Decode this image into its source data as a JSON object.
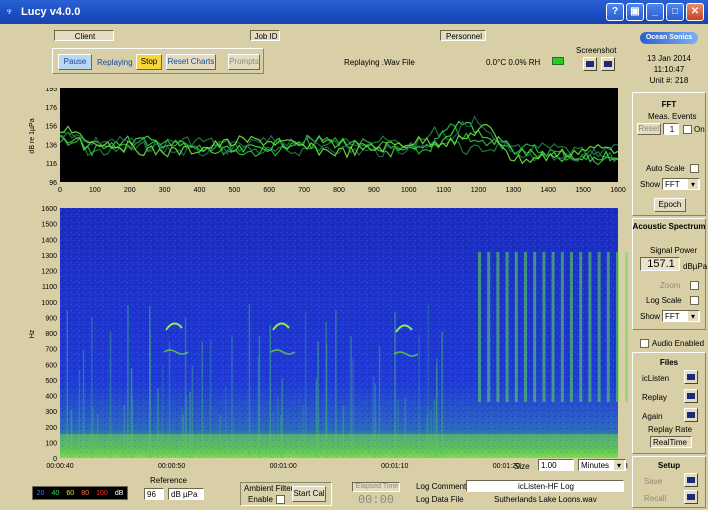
{
  "window": {
    "title": "Lucy v4.0.0"
  },
  "header": {
    "client_label": "Client",
    "jobid_label": "Job ID",
    "personnel_label": "Personnel",
    "screenshot_label": "Screenshot"
  },
  "controls": {
    "pause": "Pause",
    "replaying": "Replaying",
    "stop": "Stop",
    "reset_charts": "Reset Charts",
    "prompts": "Prompts",
    "status": "Replaying .Wav File",
    "temp_humidity": "0.0°C 0.0% RH"
  },
  "brand": {
    "logo_left": "Ocean",
    "logo_right": "Sonics",
    "date": "13 Jan 2014",
    "time": "11:10:47",
    "unit": "Unit #: 218"
  },
  "fft_chart": {
    "y_label": "dB re 1µPa",
    "y_ticks": [
      "195",
      "176",
      "156",
      "136",
      "116",
      "96"
    ],
    "x_ticks": [
      "0",
      "100",
      "200",
      "300",
      "400",
      "500",
      "600",
      "700",
      "800",
      "900",
      "1000",
      "1100",
      "1200",
      "1300",
      "1400",
      "1500",
      "1600"
    ]
  },
  "spectrogram": {
    "y_label": "Hz",
    "y_ticks": [
      "1600",
      "1500",
      "1400",
      "1300",
      "1200",
      "1100",
      "1000",
      "900",
      "800",
      "700",
      "600",
      "500",
      "400",
      "300",
      "200",
      "100",
      "0"
    ],
    "x_ticks": [
      "00:00:40",
      "00:00:50",
      "00:01:00",
      "00:01:10",
      "00:01:20",
      "00:01:30"
    ],
    "size_label": "Size",
    "size_value": "1.00",
    "units_value": "Minutes"
  },
  "right": {
    "fft_title": "FFT",
    "meas_events": "Meas. Events",
    "reset": "Reset",
    "count": "1",
    "on": "On",
    "autoscale": "Auto Scale",
    "show": "Show",
    "show_value": "FFT",
    "epoch": "Epoch",
    "acoustic_title": "Acoustic Spectrum",
    "signal_power": "Signal Power",
    "power_value": "157.1",
    "power_unit": "dBµPa",
    "zoom": "Zoom",
    "log_scale": "Log Scale",
    "show2": "Show",
    "show2_value": "FFT",
    "audio_enabled": "Audio Enabled",
    "files_title": "Files",
    "iclisten": "icListen",
    "replay": "Replay",
    "again": "Again",
    "replay_rate": "Replay Rate",
    "realtime": "RealTime",
    "setup_title": "Setup",
    "save": "Save",
    "recall": "Recall"
  },
  "footer": {
    "color_scale": [
      "20",
      "40",
      "60",
      "80",
      "100",
      "dB"
    ],
    "reference_label": "Reference",
    "ref_value": "96",
    "ref_unit": "dB µPa",
    "ambient_filter": "Ambient Filter",
    "enable": "Enable",
    "start_cal": "Start Cal",
    "elapsed_time": "Elapsed Time",
    "elapsed_value": "00:00",
    "log_comment_label": "Log Comment",
    "log_comment_value": "icListen-HF Log",
    "log_file_label": "Log Data File",
    "log_file_value": "Sutherlands Lake Loons.wav"
  }
}
